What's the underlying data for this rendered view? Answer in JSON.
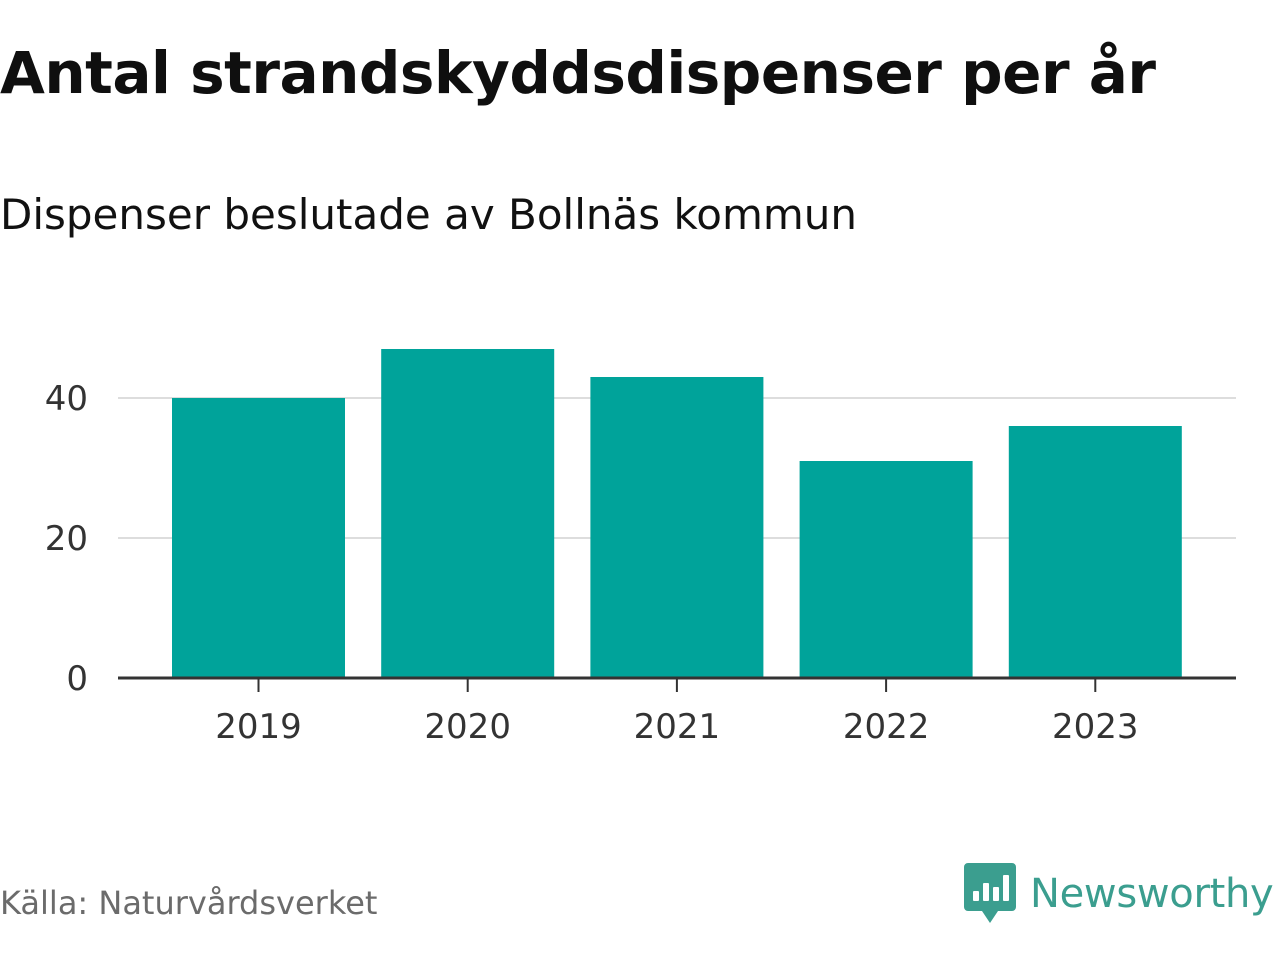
{
  "header": {
    "title": "Antal strandskyddsdispenser per år",
    "subtitle": "Dispenser beslutade av Bollnäs kommun"
  },
  "footer": {
    "source": "Källa: Naturvårdsverket",
    "brand": "Newsworthy",
    "brand_icon": "chat-bubble-chart-icon"
  },
  "colors": {
    "bar": "#00a39a",
    "gridline": "#dddddd",
    "axis": "#333333",
    "tick_text": "#333333",
    "brand": "#3b9e8f"
  },
  "chart_data": {
    "type": "bar",
    "title": "Antal strandskyddsdispenser per år",
    "subtitle": "Dispenser beslutade av Bollnäs kommun",
    "xlabel": "",
    "ylabel": "",
    "categories": [
      "2019",
      "2020",
      "2021",
      "2022",
      "2023"
    ],
    "values": [
      40,
      47,
      43,
      31,
      36
    ],
    "yticks": [
      0,
      20,
      40
    ],
    "ylim": [
      0,
      50
    ],
    "grid": true,
    "legend": "none"
  }
}
